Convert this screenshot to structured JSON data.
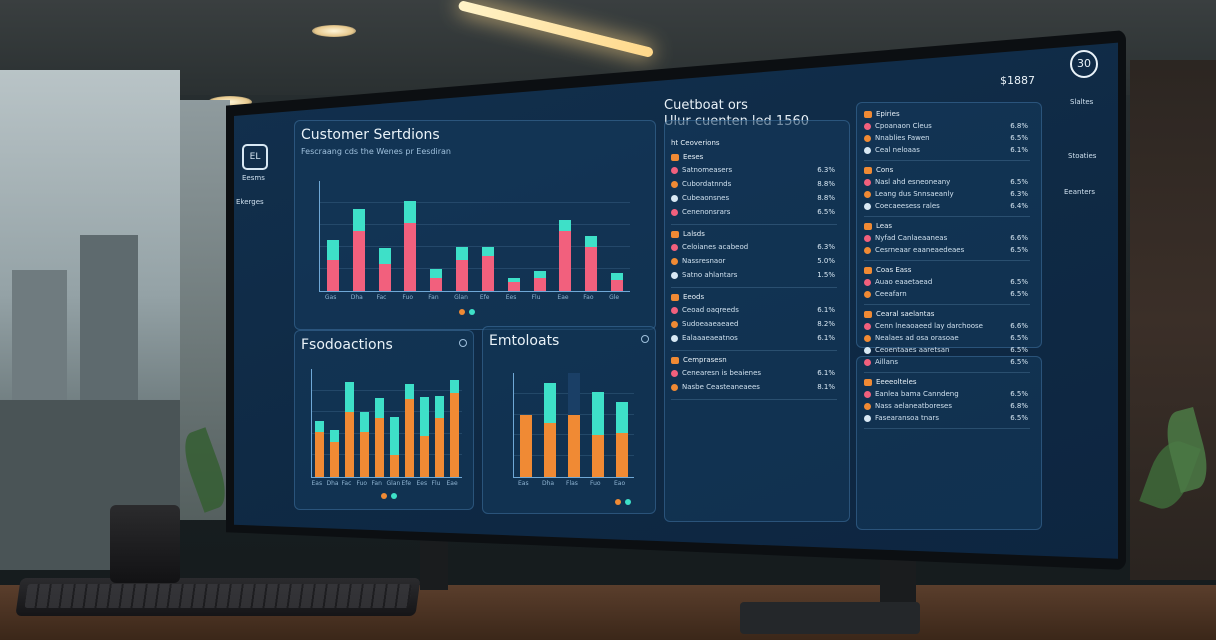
{
  "sidebar": {
    "items": [
      {
        "label": "Eesms"
      },
      {
        "label": "Ekerges"
      }
    ]
  },
  "header": {
    "title": "Cuetboat ors",
    "subtitle": "Ulur cuenten led 1560",
    "amount": "$1887",
    "badge": "30"
  },
  "right_sidebar": {
    "items": [
      {
        "label": "Slaltes"
      },
      {
        "label": "Stoaties"
      },
      {
        "label": "Eeanters"
      }
    ]
  },
  "customer_panel": {
    "title": "Customer Sertdions",
    "subtitle": "Fescraang cds the Wenes pr Eesdiran"
  },
  "products_panel": {
    "title": "Fsodoactions"
  },
  "emtoloats_panel": {
    "title": "Emtoloats"
  },
  "list_middle": {
    "header": "ht Ceoverions",
    "sections": [
      {
        "heading": "Eeses",
        "rows": [
          {
            "label": "Satnomeasers",
            "value": "6.3%"
          },
          {
            "label": "Cubordatnnds",
            "value": "8.8%"
          },
          {
            "label": "Cubeaonsnes",
            "value": "8.8%"
          },
          {
            "label": "Cenenonsrars",
            "value": "6.5%"
          }
        ]
      },
      {
        "heading": "Lalsds",
        "rows": [
          {
            "label": "Celoianes acabeod",
            "value": "6.3%"
          },
          {
            "label": "Nassresnaor",
            "value": "5.0%"
          },
          {
            "label": "Satno ahlantars",
            "value": "1.5%"
          }
        ]
      },
      {
        "heading": "Eeods",
        "rows": [
          {
            "label": "Ceoad oaqreeds",
            "value": "6.1%"
          },
          {
            "label": "Sudoeaaeaeaed",
            "value": "8.2%"
          },
          {
            "label": "Ealaaaeaeatnos",
            "value": "6.1%"
          }
        ]
      },
      {
        "heading": "Cemprasesn",
        "rows": [
          {
            "label": "Cenearesn is beaienes",
            "value": "6.1%"
          },
          {
            "label": "Nasbe Ceasteaneaees",
            "value": "8.1%"
          }
        ]
      }
    ]
  },
  "list_right": {
    "sections": [
      {
        "heading": "Epiries",
        "rows": [
          {
            "label": "Cpoanaon Cleus",
            "value": "6.8%"
          },
          {
            "label": "Nnablies Fawen",
            "value": "6.5%"
          },
          {
            "label": "Ceal neloaas",
            "value": "6.1%"
          }
        ]
      },
      {
        "heading": "Cons",
        "rows": [
          {
            "label": "Nasl ahd esneoneany",
            "value": "6.5%"
          },
          {
            "label": "Leang dus Snnsaeanly",
            "value": "6.3%"
          },
          {
            "label": "Coecaeesess rales",
            "value": "6.4%"
          }
        ]
      },
      {
        "heading": "Leas",
        "rows": [
          {
            "label": "Nyfad Canlaeaaneas",
            "value": "6.6%"
          },
          {
            "label": "Cesrneaar eaaneaedeaes",
            "value": "6.5%"
          }
        ]
      },
      {
        "heading": "Coas Eass",
        "rows": [
          {
            "label": "Auao eaaetaead",
            "value": "6.5%"
          },
          {
            "label": "Ceeafarn",
            "value": "6.5%"
          }
        ]
      },
      {
        "heading": "Cearal saelantas",
        "rows": [
          {
            "label": "Cenn lneaoaeed lay darchoose",
            "value": "6.6%"
          },
          {
            "label": "Nealaes ad osa orasoae",
            "value": "6.5%"
          },
          {
            "label": "Ceoentaaes aaretsan",
            "value": "6.5%"
          },
          {
            "label": "Aillans",
            "value": "6.5%"
          }
        ]
      },
      {
        "heading": "Eeeeolteles",
        "rows": [
          {
            "label": "Eanlea bama Canndeng",
            "value": "6.5%"
          },
          {
            "label": "Nass aelaneatboreses",
            "value": "6.8%"
          },
          {
            "label": "Fasearansoa tnars",
            "value": "6.5%"
          }
        ]
      }
    ]
  },
  "chart_data": [
    {
      "type": "bar",
      "title": "Customer Sertdions",
      "categories": [
        "Gas",
        "Dha",
        "Fac",
        "Fuo",
        "Fan",
        "Glan",
        "Efe",
        "Ees",
        "Flu",
        "Eae",
        "Fao",
        "Gle"
      ],
      "series": [
        {
          "values": [
            28,
            55,
            25,
            62,
            12,
            28,
            32,
            8,
            12,
            55,
            40,
            10
          ]
        },
        {
          "values": [
            18,
            20,
            14,
            20,
            8,
            12,
            8,
            4,
            6,
            10,
            10,
            6
          ]
        }
      ],
      "ylim": [
        0,
        100
      ]
    },
    {
      "type": "bar",
      "title": "Fsodoactions",
      "categories": [
        "Eas",
        "Dha",
        "Fac",
        "Fuo",
        "Fan",
        "Glan",
        "Efe",
        "Ees",
        "Flu",
        "Eae"
      ],
      "series": [
        {
          "values": [
            42,
            32,
            60,
            42,
            55,
            20,
            72,
            38,
            55,
            78
          ]
        },
        {
          "values": [
            10,
            12,
            28,
            18,
            18,
            36,
            14,
            36,
            20,
            12
          ]
        }
      ],
      "ylim": [
        0,
        100
      ]
    },
    {
      "type": "bar",
      "title": "Emtoloats",
      "categories": [
        "Eas",
        "Dha",
        "Flas",
        "Fuo",
        "Eao"
      ],
      "series": [
        {
          "values": [
            60,
            52,
            60,
            40,
            42
          ]
        },
        {
          "values": [
            0,
            38,
            0,
            42,
            30
          ]
        },
        {
          "values": [
            0,
            0,
            40,
            0,
            0
          ]
        }
      ],
      "ylim": [
        0,
        100
      ]
    }
  ]
}
